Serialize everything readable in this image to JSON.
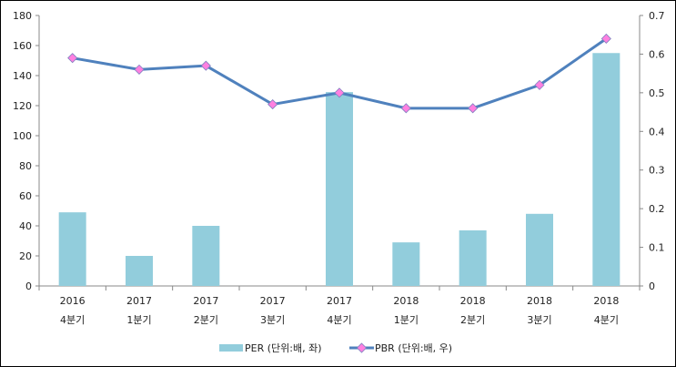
{
  "chart_data": {
    "type": "bar+line",
    "categories": [
      [
        "2016",
        "4분기"
      ],
      [
        "2017",
        "1분기"
      ],
      [
        "2017",
        "2분기"
      ],
      [
        "2017",
        "3분기"
      ],
      [
        "2017",
        "4분기"
      ],
      [
        "2018",
        "1분기"
      ],
      [
        "2018",
        "2분기"
      ],
      [
        "2018",
        "3분기"
      ],
      [
        "2018",
        "4분기"
      ]
    ],
    "series": [
      {
        "name": "PER (단위:배, 좌)",
        "type": "bar",
        "axis": "left",
        "color": "#92CDDC",
        "values": [
          49,
          20,
          40,
          0,
          129,
          29,
          37,
          48,
          155
        ]
      },
      {
        "name": "PBR (단위:배, 우)",
        "type": "line",
        "axis": "right",
        "color": "#4F81BD",
        "marker_color": "#FF80E0",
        "values": [
          0.59,
          0.56,
          0.57,
          0.47,
          0.5,
          0.46,
          0.46,
          0.52,
          0.64
        ]
      }
    ],
    "left_axis": {
      "min": 0,
      "max": 180,
      "ticks": [
        "0",
        "20",
        "40",
        "60",
        "80",
        "100",
        "120",
        "140",
        "160",
        "180"
      ]
    },
    "right_axis": {
      "min": 0,
      "max": 0.7,
      "ticks": [
        "0",
        "0.1",
        "0.2",
        "0.3",
        "0.4",
        "0.5",
        "0.6",
        "0.7"
      ]
    },
    "grid": false,
    "legend": "bottom"
  }
}
